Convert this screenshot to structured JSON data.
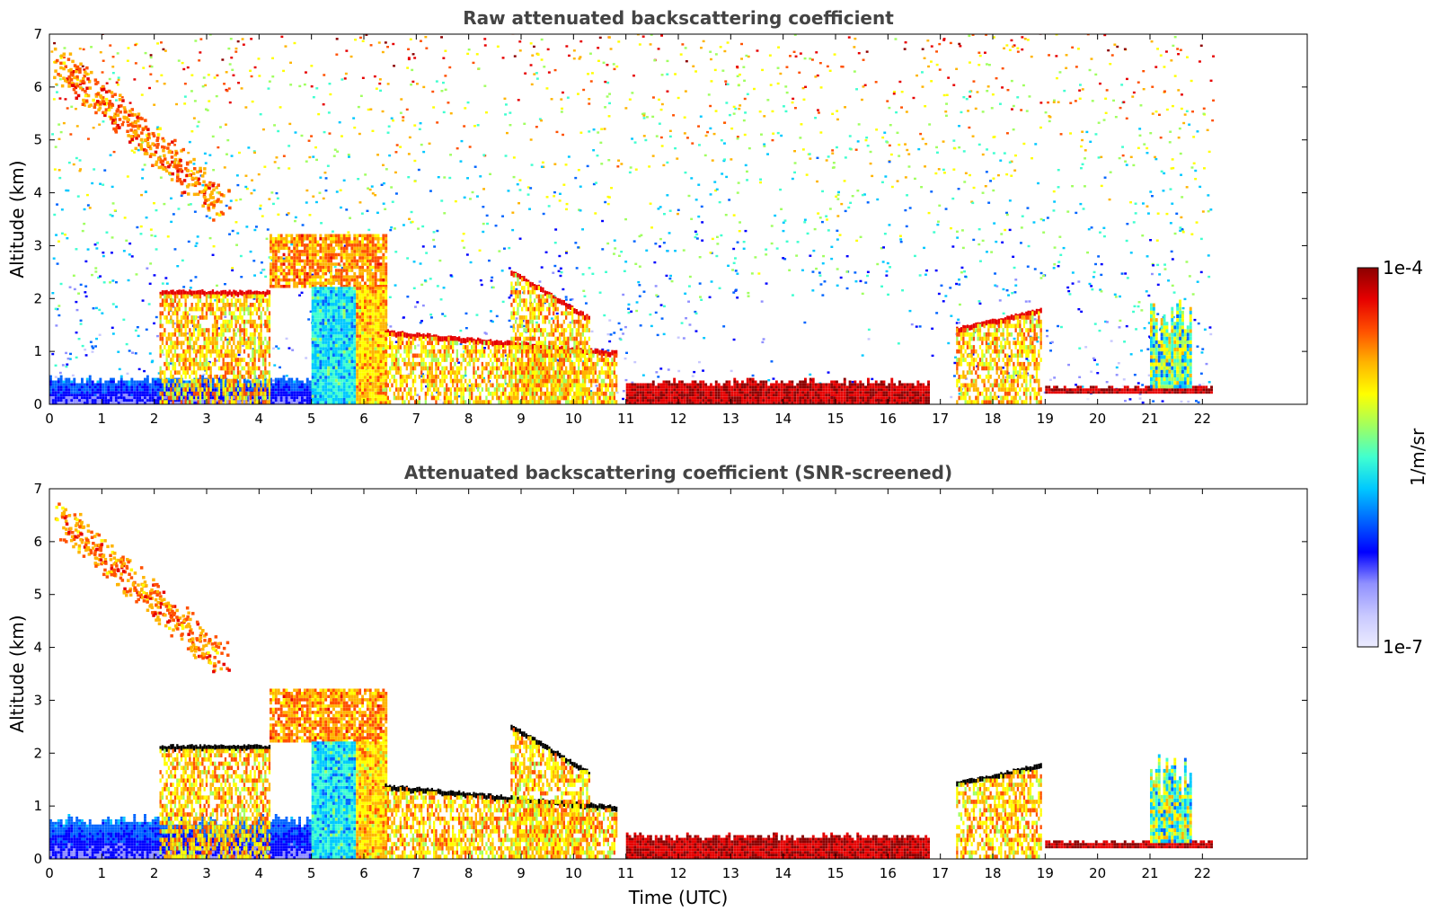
{
  "chart_data": [
    {
      "type": "heatmap",
      "title": "Raw attenuated backscattering coefficient",
      "xlabel": "",
      "ylabel": "Altitude (km)",
      "xlim": [
        0,
        24
      ],
      "ylim": [
        0,
        7
      ],
      "x_ticks": [
        0,
        1,
        2,
        3,
        4,
        5,
        6,
        7,
        8,
        9,
        10,
        11,
        12,
        13,
        14,
        15,
        16,
        17,
        18,
        19,
        20,
        21,
        22
      ],
      "y_ticks": [
        0,
        1,
        2,
        3,
        4,
        5,
        6,
        7
      ],
      "data_end_time": 22.2,
      "scale": "log",
      "features": [
        {
          "kind": "noise-background",
          "t": [
            0,
            22.2
          ],
          "z": [
            0,
            7
          ],
          "level": "increasing with altitude and with solar background"
        },
        {
          "kind": "boundary-layer",
          "t": [
            0,
            5
          ],
          "z": [
            0,
            0.45
          ],
          "level": "low"
        },
        {
          "kind": "falling-cirrus",
          "from": [
            0.2,
            6.4
          ],
          "to": [
            3.3,
            3.7
          ],
          "level": "high"
        },
        {
          "kind": "cloud-layer",
          "t": [
            2.1,
            4.2
          ],
          "z": 2.1,
          "level": "very-high"
        },
        {
          "kind": "aerosol-layer",
          "t": [
            4.2,
            6.4
          ],
          "z": [
            2.2,
            3.2
          ],
          "level": "high"
        },
        {
          "kind": "cloud-layer",
          "t": [
            6.4,
            10.8
          ],
          "z_start": 1.35,
          "z_end": 0.95,
          "level": "very-high"
        },
        {
          "kind": "cloud-layer",
          "t": [
            8.8,
            10.3
          ],
          "z_start": 2.5,
          "z_end": 1.6,
          "level": "very-high"
        },
        {
          "kind": "boundary-layer",
          "t": [
            11,
            16.8
          ],
          "z": [
            0,
            0.4
          ],
          "level": "very-high"
        },
        {
          "kind": "cloud-layer",
          "t": [
            17.3,
            18.9
          ],
          "z_start": 1.4,
          "z_end": 1.75,
          "level": "very-high"
        },
        {
          "kind": "boundary-layer",
          "t": [
            19,
            22.2
          ],
          "z": [
            0.2,
            0.3
          ],
          "level": "very-high"
        },
        {
          "kind": "convective-plumes",
          "t": [
            21,
            21.8
          ],
          "z": [
            0.3,
            2.0
          ],
          "level": "high"
        }
      ]
    },
    {
      "type": "heatmap",
      "title": "Attenuated backscattering coefficient (SNR-screened)",
      "xlabel": "Time (UTC)",
      "ylabel": "Altitude (km)",
      "xlim": [
        0,
        24
      ],
      "ylim": [
        0,
        7
      ],
      "x_ticks": [
        0,
        1,
        2,
        3,
        4,
        5,
        6,
        7,
        8,
        9,
        10,
        11,
        12,
        13,
        14,
        15,
        16,
        17,
        18,
        19,
        20,
        21,
        22
      ],
      "y_ticks": [
        0,
        1,
        2,
        3,
        4,
        5,
        6,
        7
      ],
      "data_end_time": 22.2,
      "scale": "log",
      "features": [
        {
          "kind": "boundary-layer",
          "t": [
            0,
            5
          ],
          "z": [
            0,
            0.7
          ],
          "level": "low"
        },
        {
          "kind": "falling-cirrus",
          "from": [
            0.2,
            6.4
          ],
          "to": [
            3.3,
            3.7
          ],
          "level": "high"
        },
        {
          "kind": "cloud-layer",
          "t": [
            2.1,
            4.2
          ],
          "z": 2.1,
          "level": "saturated"
        },
        {
          "kind": "aerosol-layer",
          "t": [
            4.2,
            6.4
          ],
          "z": [
            2.2,
            3.2
          ],
          "level": "high"
        },
        {
          "kind": "cloud-layer",
          "t": [
            6.4,
            10.8
          ],
          "z_start": 1.35,
          "z_end": 0.95,
          "level": "saturated"
        },
        {
          "kind": "cloud-layer",
          "t": [
            8.8,
            10.3
          ],
          "z_start": 2.5,
          "z_end": 1.6,
          "level": "saturated"
        },
        {
          "kind": "boundary-layer",
          "t": [
            11,
            16.8
          ],
          "z": [
            0,
            0.4
          ],
          "level": "very-high"
        },
        {
          "kind": "cloud-layer",
          "t": [
            17.3,
            18.9
          ],
          "z_start": 1.4,
          "z_end": 1.75,
          "level": "saturated"
        },
        {
          "kind": "boundary-layer",
          "t": [
            19,
            22.2
          ],
          "z": [
            0.2,
            0.3
          ],
          "level": "very-high"
        },
        {
          "kind": "convective-plumes",
          "t": [
            21,
            21.8
          ],
          "z": [
            0.3,
            2.0
          ],
          "level": "high"
        }
      ]
    }
  ],
  "colorbar": {
    "max_label": "1e-4",
    "min_label": "1e-7",
    "unit_label": "1/m/sr",
    "colormap": [
      "#ebebff",
      "#c8c8ff",
      "#9090ff",
      "#0000ff",
      "#0064ff",
      "#00c8ff",
      "#40ffd0",
      "#a0ff60",
      "#ffff00",
      "#ffb400",
      "#ff5000",
      "#e60000",
      "#8c0000"
    ]
  }
}
